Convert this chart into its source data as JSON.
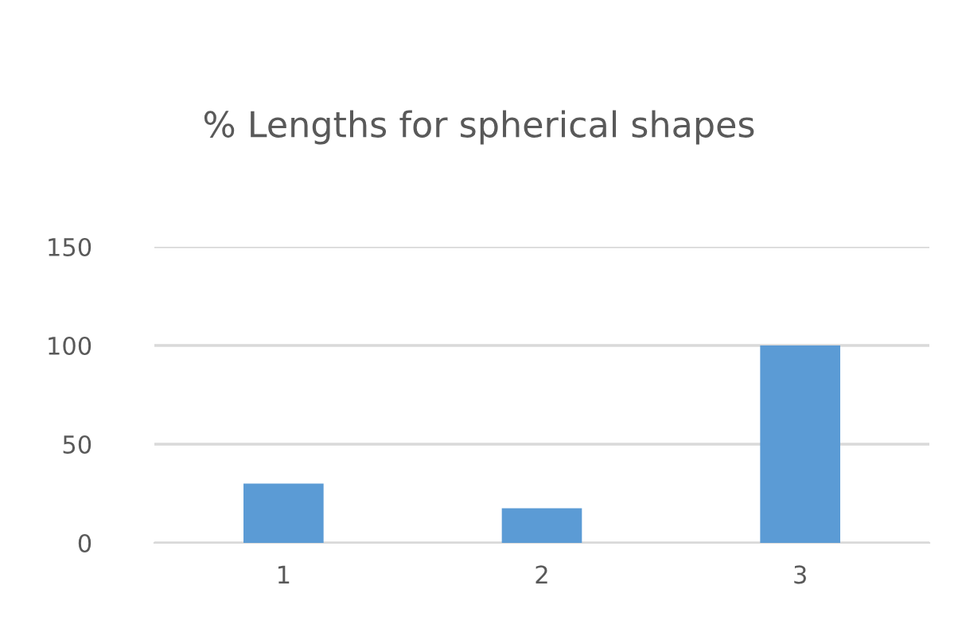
{
  "chart_data": {
    "type": "bar",
    "title": "% Lengths for spherical shapes",
    "categories": [
      "1",
      "2",
      "3"
    ],
    "values": [
      30,
      17.5,
      100
    ],
    "color": "#5b9bd5",
    "ylim": [
      0,
      150
    ],
    "yticks": [
      0,
      50,
      100,
      150
    ],
    "grid": "y"
  }
}
